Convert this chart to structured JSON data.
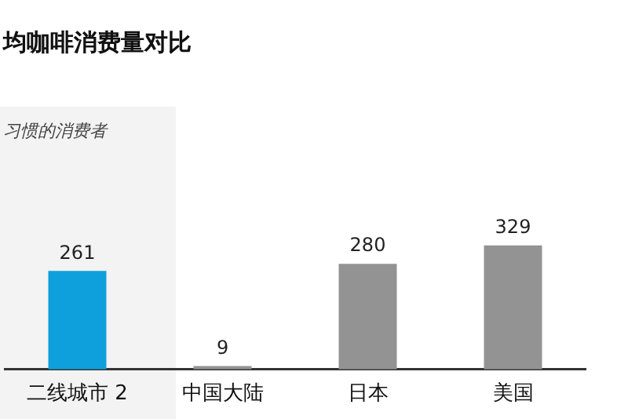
{
  "chart_data": {
    "type": "bar",
    "title": "均咖啡消费量对比",
    "subtitle": "习惯的消费者",
    "categories": [
      "二线城市 2",
      "中国大陆",
      "日本",
      "美国"
    ],
    "values": [
      261,
      9,
      280,
      329
    ],
    "colors": [
      "#0ea0dc",
      "#939393",
      "#939393",
      "#939393"
    ],
    "data_labels": true,
    "grid": false,
    "legend": false
  }
}
